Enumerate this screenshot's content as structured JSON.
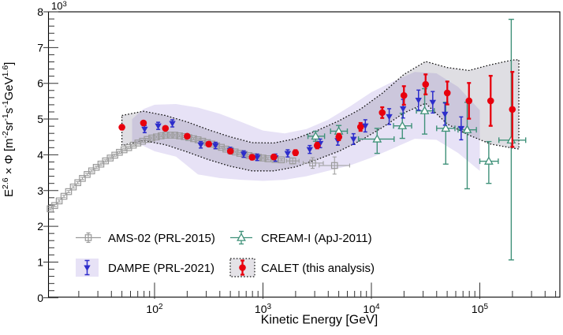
{
  "chart_data": {
    "type": "scatter",
    "title": "",
    "xlabel": "Kinetic Energy [GeV]",
    "ylabel_segments": [
      {
        "t": "E"
      },
      {
        "t": "2.6",
        "sup": true
      },
      {
        "t": " × Φ [m"
      },
      {
        "t": "-2",
        "sup": true
      },
      {
        "t": "sr"
      },
      {
        "t": "-1",
        "sup": true
      },
      {
        "t": "s"
      },
      {
        "t": "-1",
        "sup": true
      },
      {
        "t": "GeV"
      },
      {
        "t": "1.6",
        "sup": true
      },
      {
        "t": "]"
      }
    ],
    "y_scale_exponent": {
      "base": "10",
      "exp": "3"
    },
    "x_scale": "log",
    "x_range": [
      10.6,
      547000
    ],
    "y_range_in_1e3": [
      0,
      8
    ],
    "y_major_ticks": [
      0,
      1,
      2,
      3,
      4,
      5,
      6,
      7,
      8
    ],
    "y_minor_step": 0.2,
    "x_major_ticks": [
      {
        "value": 100,
        "base": "10",
        "exp": "2"
      },
      {
        "value": 1000,
        "base": "10",
        "exp": "3"
      },
      {
        "value": 10000,
        "base": "10",
        "exp": "4"
      },
      {
        "value": 100000,
        "base": "10",
        "exp": "5"
      }
    ],
    "grid": false,
    "legend_position": "bottom-left-inside",
    "series": [
      {
        "id": "ams",
        "label": "AMS-02 (PRL-2015)",
        "marker": "open-square",
        "color": "#9a9a9a",
        "points": [
          [
            10.9,
            2.49
          ],
          [
            12.0,
            2.58
          ],
          [
            13.2,
            2.71
          ],
          [
            14.6,
            2.84
          ],
          [
            16.1,
            2.97
          ],
          [
            17.8,
            3.1
          ],
          [
            19.6,
            3.22
          ],
          [
            21.6,
            3.34
          ],
          [
            23.9,
            3.45
          ],
          [
            26.3,
            3.55
          ],
          [
            29.0,
            3.65
          ],
          [
            32.0,
            3.74
          ],
          [
            35.3,
            3.83
          ],
          [
            39.0,
            3.91
          ],
          [
            43.0,
            3.99
          ],
          [
            47.4,
            4.07
          ],
          [
            52.3,
            4.14
          ],
          [
            57.7,
            4.2
          ],
          [
            63.7,
            4.27
          ],
          [
            70.2,
            4.33
          ],
          [
            77.5,
            4.38
          ],
          [
            85.5,
            4.43
          ],
          [
            94.3,
            4.47
          ],
          [
            104,
            4.5
          ],
          [
            115,
            4.53
          ],
          [
            127,
            4.55
          ],
          [
            140,
            4.55
          ],
          [
            154,
            4.55
          ],
          [
            170,
            4.53
          ],
          [
            188,
            4.51
          ],
          [
            207,
            4.48
          ],
          [
            229,
            4.45
          ],
          [
            252,
            4.42
          ],
          [
            278,
            4.38
          ],
          [
            307,
            4.34
          ],
          [
            339,
            4.3
          ],
          [
            374,
            4.25
          ],
          [
            413,
            4.21
          ],
          [
            455,
            4.16
          ],
          [
            502,
            4.12
          ],
          [
            554,
            4.08
          ],
          [
            611,
            4.04
          ],
          [
            674,
            4.01
          ],
          [
            744,
            3.98
          ],
          [
            821,
            3.95
          ],
          [
            906,
            3.93
          ],
          [
            1000,
            3.91
          ],
          [
            1110,
            3.89
          ],
          [
            1290,
            3.87
          ],
          [
            1480,
            3.86
          ],
          [
            1880,
            3.83,
            0.08,
            0.08,
            1650,
            2150
          ],
          [
            2870,
            3.77,
            0.15,
            0.15,
            2350,
            3600
          ],
          [
            4570,
            3.7,
            0.24,
            0.24,
            3300,
            6300
          ]
        ]
      },
      {
        "id": "cream",
        "label": "CREAM-I (ApJ-2011)",
        "marker": "open-triangle-up",
        "color": "#3f9179",
        "points": [
          [
            3060,
            4.52,
            0.14,
            0.14,
            2600,
            3700
          ],
          [
            5000,
            4.66,
            0.16,
            0.16,
            4200,
            6000
          ],
          [
            11300,
            4.44,
            0.4,
            0.3,
            7600,
            16200
          ],
          [
            19300,
            4.81,
            0.35,
            0.35,
            16000,
            23500
          ],
          [
            31000,
            5.23,
            0.65,
            0.62,
            26000,
            38000
          ],
          [
            48500,
            4.74,
            1.0,
            0.73,
            40000,
            59000
          ],
          [
            76500,
            4.7,
            1.65,
            0.77,
            63000,
            93000
          ],
          [
            121000,
            3.82,
            0.62,
            0.55,
            100000,
            148000
          ],
          [
            195000,
            4.41,
            3.35,
            3.38,
            150000,
            265000
          ]
        ]
      },
      {
        "id": "dampe",
        "label": "DAMPE (PRL-2021)",
        "marker": "filled-triangle-down",
        "color": "#2d2dcb",
        "band_color": "#e7e2f6",
        "band": [
          [
            62,
            4.35,
            5.0
          ],
          [
            79,
            4.25,
            5.28
          ],
          [
            100,
            4.1,
            5.4
          ],
          [
            158,
            3.95,
            5.42
          ],
          [
            251,
            3.45,
            5.32
          ],
          [
            398,
            3.35,
            5.15
          ],
          [
            631,
            3.3,
            4.92
          ],
          [
            1000,
            3.27,
            4.68
          ],
          [
            1585,
            3.3,
            4.6
          ],
          [
            2512,
            3.4,
            4.72
          ],
          [
            3981,
            3.55,
            4.98
          ],
          [
            6310,
            3.7,
            5.35
          ],
          [
            10000,
            3.92,
            5.75
          ],
          [
            15849,
            4.18,
            6.05
          ],
          [
            25119,
            4.45,
            6.32
          ],
          [
            39811,
            4.42,
            6.28
          ],
          [
            63096,
            4.05,
            5.9
          ],
          [
            100000,
            3.55,
            5.25
          ]
        ],
        "points": [
          [
            81,
            4.72,
            0.1
          ],
          [
            108,
            4.81,
            0.1
          ],
          [
            146,
            4.88,
            0.1
          ],
          [
            267,
            4.28,
            0.09
          ],
          [
            365,
            4.26,
            0.09
          ],
          [
            500,
            4.12,
            0.09
          ],
          [
            665,
            4.02,
            0.09
          ],
          [
            885,
            3.93,
            0.09
          ],
          [
            1300,
            3.92,
            0.1
          ],
          [
            1690,
            4.04,
            0.1
          ],
          [
            2700,
            4.15,
            0.11
          ],
          [
            3370,
            4.32,
            0.12
          ],
          [
            4900,
            4.4,
            0.13
          ],
          [
            6840,
            4.44,
            0.15
          ],
          [
            8790,
            4.81,
            0.17
          ],
          [
            14600,
            5.07,
            0.22
          ],
          [
            19600,
            5.29,
            0.26
          ],
          [
            27200,
            5.53,
            0.28
          ],
          [
            36800,
            5.47,
            0.3
          ],
          [
            47700,
            5.14,
            0.31
          ],
          [
            67300,
            4.74,
            0.32
          ]
        ]
      },
      {
        "id": "calet",
        "label": "CALET (this analysis)",
        "marker": "filled-circle",
        "color": "#e8000d",
        "band_color": "rgba(108,104,126,0.22)",
        "band_border": "dotted",
        "band": [
          [
            50,
            4.26,
            5.1
          ],
          [
            79,
            4.4,
            5.22
          ],
          [
            126,
            4.28,
            5.1
          ],
          [
            200,
            4.08,
            4.92
          ],
          [
            316,
            3.86,
            4.7
          ],
          [
            501,
            3.68,
            4.5
          ],
          [
            794,
            3.55,
            4.34
          ],
          [
            1259,
            3.55,
            4.33
          ],
          [
            1995,
            3.66,
            4.45
          ],
          [
            3162,
            3.87,
            4.68
          ],
          [
            5012,
            4.1,
            4.95
          ],
          [
            7943,
            4.4,
            5.28
          ],
          [
            12589,
            4.76,
            5.72
          ],
          [
            19953,
            5.17,
            6.25
          ],
          [
            31623,
            5.44,
            6.61
          ],
          [
            50119,
            4.86,
            6.44
          ],
          [
            79433,
            4.55,
            6.36
          ],
          [
            125893,
            4.3,
            6.52
          ],
          [
            199526,
            4.19,
            6.65
          ],
          [
            229000,
            4.16,
            6.66
          ]
        ],
        "points": [
          [
            50,
            4.77,
            0.06
          ],
          [
            79,
            4.89,
            0.05
          ],
          [
            126,
            4.74,
            0.05
          ],
          [
            200,
            4.52,
            0.05
          ],
          [
            316,
            4.3,
            0.05
          ],
          [
            501,
            4.1,
            0.05
          ],
          [
            794,
            3.93,
            0.06
          ],
          [
            1259,
            3.94,
            0.06
          ],
          [
            1995,
            4.06,
            0.07
          ],
          [
            3162,
            4.26,
            0.08
          ],
          [
            5012,
            4.5,
            0.09
          ],
          [
            7943,
            4.78,
            0.11
          ],
          [
            12589,
            5.18,
            0.15
          ],
          [
            19953,
            5.66,
            0.26
          ],
          [
            31623,
            5.97,
            0.28
          ],
          [
            50119,
            5.73,
            0.32
          ],
          [
            79433,
            5.51,
            0.5
          ],
          [
            125893,
            5.51,
            0.7
          ],
          [
            199526,
            5.27,
            1.05
          ]
        ]
      }
    ],
    "legend_order": [
      "ams",
      "cream",
      "dampe",
      "calet"
    ]
  }
}
